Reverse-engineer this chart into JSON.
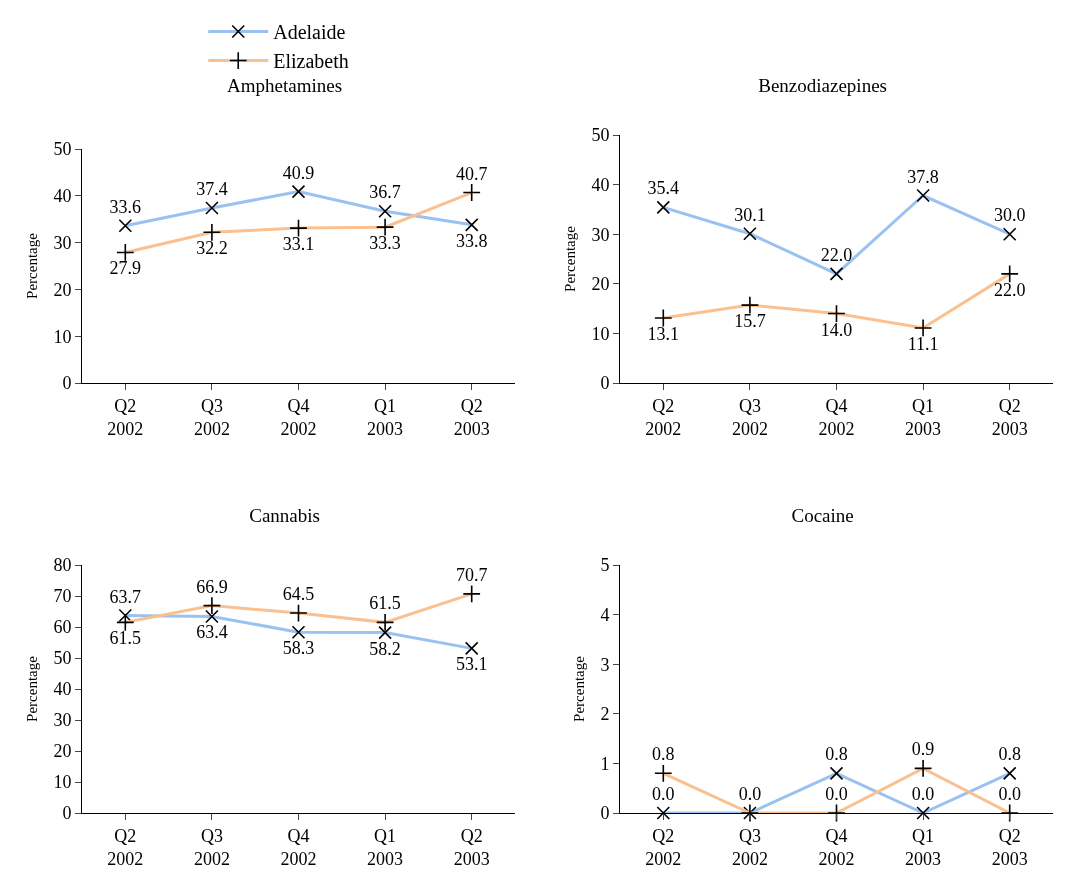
{
  "chart_data": [
    {
      "type": "line",
      "title": "Amphetamines",
      "ylabel": "Percentage",
      "categories": [
        "Q2 2002",
        "Q3 2002",
        "Q4 2002",
        "Q1 2003",
        "Q2 2003"
      ],
      "ylim": [
        0,
        50
      ],
      "yticks": [
        0,
        10,
        20,
        30,
        40,
        50
      ],
      "grid": false,
      "legend": "top",
      "data_labels": true,
      "series": [
        {
          "name": "Adelaide",
          "color": "#99c2f0",
          "marker": "cross",
          "values": [
            33.6,
            37.4,
            40.9,
            36.7,
            33.8
          ]
        },
        {
          "name": "Elizabeth",
          "color": "#fac08f",
          "marker": "plus",
          "values": [
            27.9,
            32.2,
            33.1,
            33.3,
            40.7
          ]
        }
      ]
    },
    {
      "type": "line",
      "title": "Benzodiazepines",
      "ylabel": "Percentage",
      "categories": [
        "Q2 2002",
        "Q3 2002",
        "Q4 2002",
        "Q1 2003",
        "Q2 2003"
      ],
      "ylim": [
        0,
        50
      ],
      "yticks": [
        0,
        10,
        20,
        30,
        40,
        50
      ],
      "grid": false,
      "series": [
        {
          "color": "#99c2f0",
          "marker": "cross",
          "values": [
            35.4,
            30.1,
            22.0,
            37.8,
            30.0
          ],
          "value_labels": [
            "35.4",
            "30.1",
            "22.0",
            "37.8",
            "30.0"
          ]
        },
        {
          "color": "#fac08f",
          "marker": "plus",
          "values": [
            13.1,
            15.7,
            14.0,
            11.1,
            22.0
          ],
          "value_labels": [
            "13.1",
            "15.7",
            "14.0",
            "11.1",
            "22.0"
          ]
        }
      ]
    },
    {
      "type": "line",
      "title": "Cannabis",
      "ylabel": "Percentage",
      "categories": [
        "Q2 2002",
        "Q3 2002",
        "Q4 2002",
        "Q1 2003",
        "Q2 2003"
      ],
      "ylim": [
        0,
        80
      ],
      "yticks": [
        0,
        10,
        20,
        30,
        40,
        50,
        60,
        70,
        80
      ],
      "grid": false,
      "data_labels": true,
      "series": [
        {
          "color": "#99c2f0",
          "marker": "cross",
          "values": [
            63.7,
            63.4,
            58.3,
            58.2,
            53.1
          ]
        },
        {
          "color": "#fac08f",
          "marker": "plus",
          "values": [
            61.5,
            66.9,
            64.5,
            61.5,
            70.7
          ]
        }
      ]
    },
    {
      "type": "line",
      "title": "Cocaine",
      "ylabel": "Percentage",
      "categories": [
        "Q2 2002",
        "Q3 2002",
        "Q4 2002",
        "Q1 2003",
        "Q2 2003"
      ],
      "ylim": [
        0,
        5
      ],
      "yticks": [
        0,
        1,
        2,
        3,
        4,
        5
      ],
      "grid": false,
      "series": [
        {
          "color": "#99c2f0",
          "marker": "cross",
          "values": [
            0.0,
            0.0,
            0.8,
            0.0,
            0.8
          ],
          "value_labels": [
            "0.0",
            "0.0",
            "0.8",
            "0.0",
            "0.8"
          ]
        },
        {
          "color": "#fac08f",
          "marker": "plus",
          "values": [
            0.8,
            0.0,
            0.0,
            0.9,
            0.0
          ],
          "value_labels": [
            "0.8",
            null,
            "0.0",
            "0.9",
            "0.0"
          ]
        }
      ]
    }
  ]
}
